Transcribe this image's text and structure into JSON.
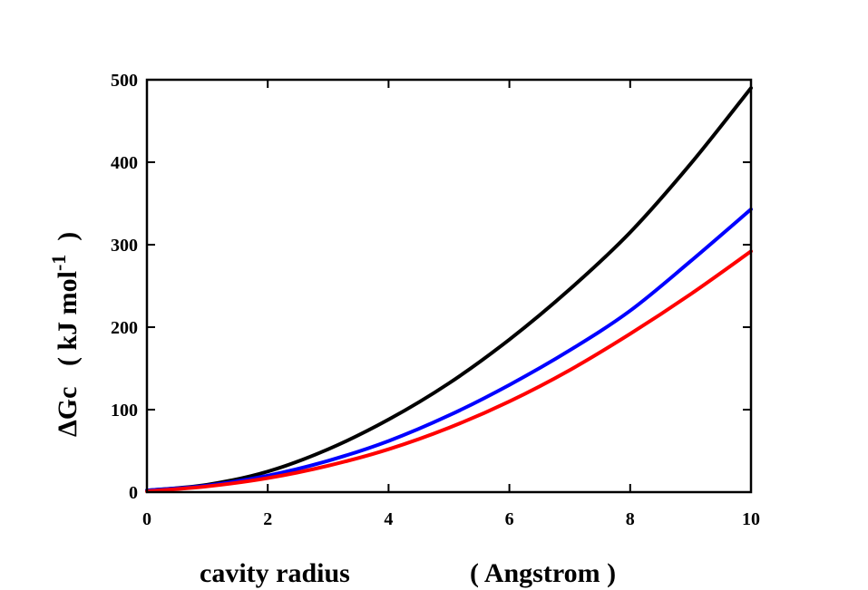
{
  "chart_data": {
    "type": "line",
    "xlabel_left": "cavity radius",
    "xlabel_right": "( Angstrom )",
    "ylabel": "ΔGc   ( kJ mol",
    "ylabel_sup": "-1",
    "ylabel_close": ")",
    "xlim": [
      0,
      10
    ],
    "ylim": [
      0,
      500
    ],
    "xticks": [
      0,
      2,
      4,
      6,
      8,
      10
    ],
    "yticks": [
      0,
      100,
      200,
      300,
      400,
      500
    ],
    "grid": false,
    "legend": "none",
    "series": [
      {
        "color": "#000000",
        "x": [
          0,
          1,
          2,
          3,
          4,
          5,
          6,
          7,
          8,
          9,
          10
        ],
        "y": [
          2,
          9,
          25,
          52,
          88,
          132,
          185,
          246,
          315,
          398,
          490
        ]
      },
      {
        "color": "#0000ff",
        "x": [
          0,
          1,
          2,
          3,
          4,
          5,
          6,
          7,
          8,
          9,
          10
        ],
        "y": [
          2,
          8,
          20,
          38,
          62,
          93,
          130,
          172,
          220,
          280,
          343
        ]
      },
      {
        "color": "#ff0000",
        "x": [
          0,
          1,
          2,
          3,
          4,
          5,
          6,
          7,
          8,
          9,
          10
        ],
        "y": [
          1,
          7,
          17,
          32,
          52,
          78,
          110,
          148,
          192,
          240,
          292
        ]
      }
    ]
  }
}
